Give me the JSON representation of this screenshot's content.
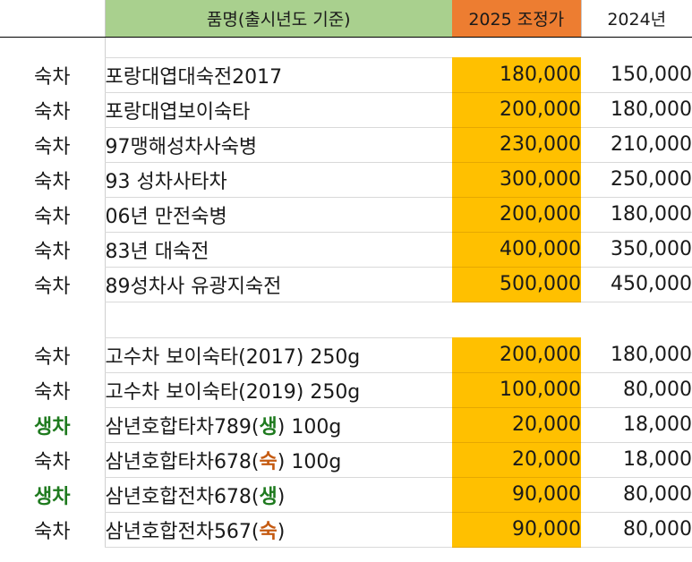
{
  "header": {
    "type": "",
    "name": "품명(출시년도 기준)",
    "price2025": "2025 조정가",
    "price2024": "2024년"
  },
  "colors": {
    "name_header_bg": "#a9d08e",
    "price2025_header_bg": "#ed7d31",
    "price2025_cell_bg": "#ffc000",
    "raw_tea_green": "#1e7a1e",
    "ripe_tea_brown": "#c55a11"
  },
  "group1": [
    {
      "type": "숙차",
      "name": "포랑대엽대숙전2017",
      "price2025": "180,000",
      "price2024": "150,000"
    },
    {
      "type": "숙차",
      "name": "포랑대엽보이숙타",
      "price2025": "200,000",
      "price2024": "180,000"
    },
    {
      "type": "숙차",
      "name": "97맹해성차사숙병",
      "price2025": "230,000",
      "price2024": "210,000"
    },
    {
      "type": "숙차",
      "name": "93 성차사타차",
      "price2025": "300,000",
      "price2024": "250,000"
    },
    {
      "type": "숙차",
      "name": "06년 만전숙병",
      "price2025": "200,000",
      "price2024": "180,000"
    },
    {
      "type": "숙차",
      "name": "83년 대숙전",
      "price2025": "400,000",
      "price2024": "350,000"
    },
    {
      "type": "숙차",
      "name": "89성차사 유광지숙전",
      "price2025": "500,000",
      "price2024": "450,000"
    }
  ],
  "group2": [
    {
      "type": "숙차",
      "name_a": "고수차 보이숙타(2017) 250g",
      "mark": "",
      "name_b": "",
      "price2025": "200,000",
      "price2024": "180,000"
    },
    {
      "type": "숙차",
      "name_a": "고수차 보이숙타(2019) 250g",
      "mark": "",
      "name_b": "",
      "price2025": "100,000",
      "price2024": "80,000"
    },
    {
      "type": "생차",
      "name_a": "삼년호합타차789(",
      "mark": "생",
      "name_b": ") 100g",
      "price2025": "20,000",
      "price2024": "18,000"
    },
    {
      "type": "숙차",
      "name_a": "삼년호합타차678(",
      "mark": "숙",
      "name_b": ") 100g",
      "price2025": "20,000",
      "price2024": "18,000"
    },
    {
      "type": "생차",
      "name_a": "삼년호합전차678(",
      "mark": "생",
      "name_b": ")",
      "price2025": "90,000",
      "price2024": "80,000"
    },
    {
      "type": "숙차",
      "name_a": "삼년호합전차567(",
      "mark": "숙",
      "name_b": ")",
      "price2025": "90,000",
      "price2024": "80,000"
    }
  ]
}
